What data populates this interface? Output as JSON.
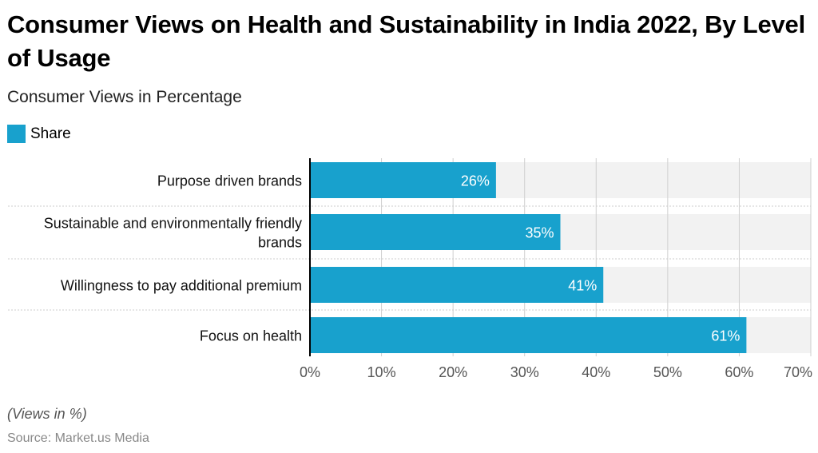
{
  "title": "Consumer Views on Health and Sustainability in India 2022, By Level of Usage",
  "subtitle": "Consumer Views in Percentage",
  "note": "(Views in %)",
  "source": "Source: Market.us Media",
  "chart_data": {
    "type": "bar",
    "orientation": "horizontal",
    "categories": [
      [
        "Purpose driven brands"
      ],
      [
        "Sustainable and environmentally friendly",
        "brands"
      ],
      [
        "Willingness to pay additional premium"
      ],
      [
        "Focus on health"
      ]
    ],
    "series": [
      {
        "name": "Share",
        "values": [
          26,
          35,
          41,
          61
        ],
        "color": "#18a1cd"
      }
    ],
    "data_labels": [
      "26%",
      "35%",
      "41%",
      "61%"
    ],
    "xlim": [
      0,
      70
    ],
    "x_ticks": [
      0,
      10,
      20,
      30,
      40,
      50,
      60,
      70
    ],
    "x_tick_labels": [
      "0%",
      "10%",
      "20%",
      "30%",
      "40%",
      "50%",
      "60%",
      "70%"
    ],
    "grid": true,
    "legend": "top-left"
  }
}
